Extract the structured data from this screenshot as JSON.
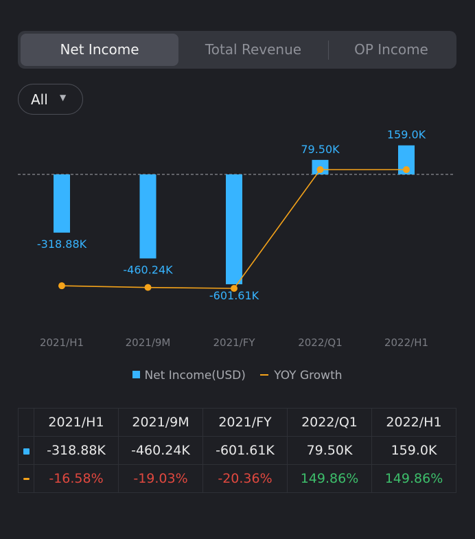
{
  "tabs": [
    {
      "label": "Net Income",
      "active": true
    },
    {
      "label": "Total Revenue",
      "active": false
    },
    {
      "label": "OP Income",
      "active": false
    }
  ],
  "filter": {
    "label": "All",
    "caret": "▼"
  },
  "colors": {
    "bar": "#37b4ff",
    "line": "#f5a31a",
    "negative": "#e0483f",
    "positive": "#3dbf6b",
    "axis_label": "#7b7d84"
  },
  "chart_data": {
    "type": "bar",
    "categories": [
      "2021/H1",
      "2021/9M",
      "2021/FY",
      "2022/Q1",
      "2022/H1"
    ],
    "series": [
      {
        "name": "Net Income(USD)",
        "type": "bar",
        "values": [
          -318.88,
          -460.24,
          -601.61,
          79.5,
          159.0
        ],
        "labels": [
          "-318.88K",
          "-460.24K",
          "-601.61K",
          "79.50K",
          "159.0K"
        ]
      },
      {
        "name": "YOY Growth",
        "type": "line",
        "values": [
          -16.58,
          -19.03,
          -20.36,
          149.86,
          149.86
        ]
      }
    ],
    "unit": "K"
  },
  "legend": {
    "bar": "Net Income(USD)",
    "line": "YOY Growth"
  },
  "table": {
    "headers": [
      "2021/H1",
      "2021/9M",
      "2021/FY",
      "2022/Q1",
      "2022/H1"
    ],
    "rows": [
      {
        "marker": "bar",
        "values": [
          "-318.88K",
          "-460.24K",
          "-601.61K",
          "79.50K",
          "159.0K"
        ]
      },
      {
        "marker": "line",
        "values": [
          "-16.58%",
          "-19.03%",
          "-20.36%",
          "149.86%",
          "149.86%"
        ]
      }
    ]
  }
}
